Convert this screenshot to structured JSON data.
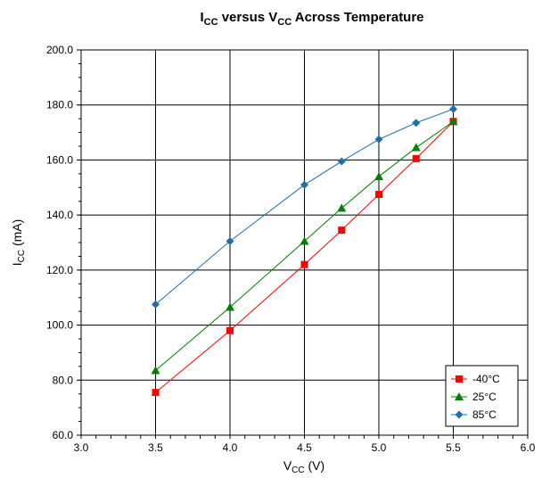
{
  "chart_data": {
    "type": "line",
    "title": {
      "main_a": "I",
      "sub_a": "CC",
      "main_b": " versus V",
      "sub_b": "CC",
      "main_c": " Across Temperature"
    },
    "xlabel": {
      "main": "V",
      "sub": "CC",
      "rest": " (V)"
    },
    "ylabel": {
      "main": "I",
      "sub": "CC",
      "rest": " (mA)"
    },
    "xlim": [
      3.0,
      6.0
    ],
    "ylim": [
      60.0,
      200.0
    ],
    "x_ticks": [
      "3.0",
      "3.5",
      "4.0",
      "4.5",
      "5.0",
      "5.5",
      "6.0"
    ],
    "y_ticks": [
      "60.0",
      "80.0",
      "100.0",
      "120.0",
      "140.0",
      "160.0",
      "180.0",
      "200.0"
    ],
    "grid": true,
    "legend_position": "bottom-right",
    "series": [
      {
        "name": "-40°C",
        "color": "#ff0000",
        "marker": "square",
        "x": [
          3.5,
          4.0,
          4.5,
          4.75,
          5.0,
          5.25,
          5.5
        ],
        "y": [
          75.5,
          98.0,
          122.0,
          134.5,
          147.5,
          160.5,
          174.0
        ]
      },
      {
        "name": "25°C",
        "color": "#008000",
        "marker": "triangle",
        "x": [
          3.5,
          4.0,
          4.5,
          4.75,
          5.0,
          5.25,
          5.5
        ],
        "y": [
          83.5,
          106.5,
          130.5,
          142.5,
          154.0,
          164.5,
          174.0
        ]
      },
      {
        "name": "85°C",
        "color": "#1f6fa8",
        "marker": "diamond",
        "x": [
          3.5,
          4.0,
          4.5,
          4.75,
          5.0,
          5.25,
          5.5
        ],
        "y": [
          107.5,
          130.5,
          151.0,
          159.5,
          167.5,
          173.5,
          178.5
        ]
      }
    ]
  }
}
